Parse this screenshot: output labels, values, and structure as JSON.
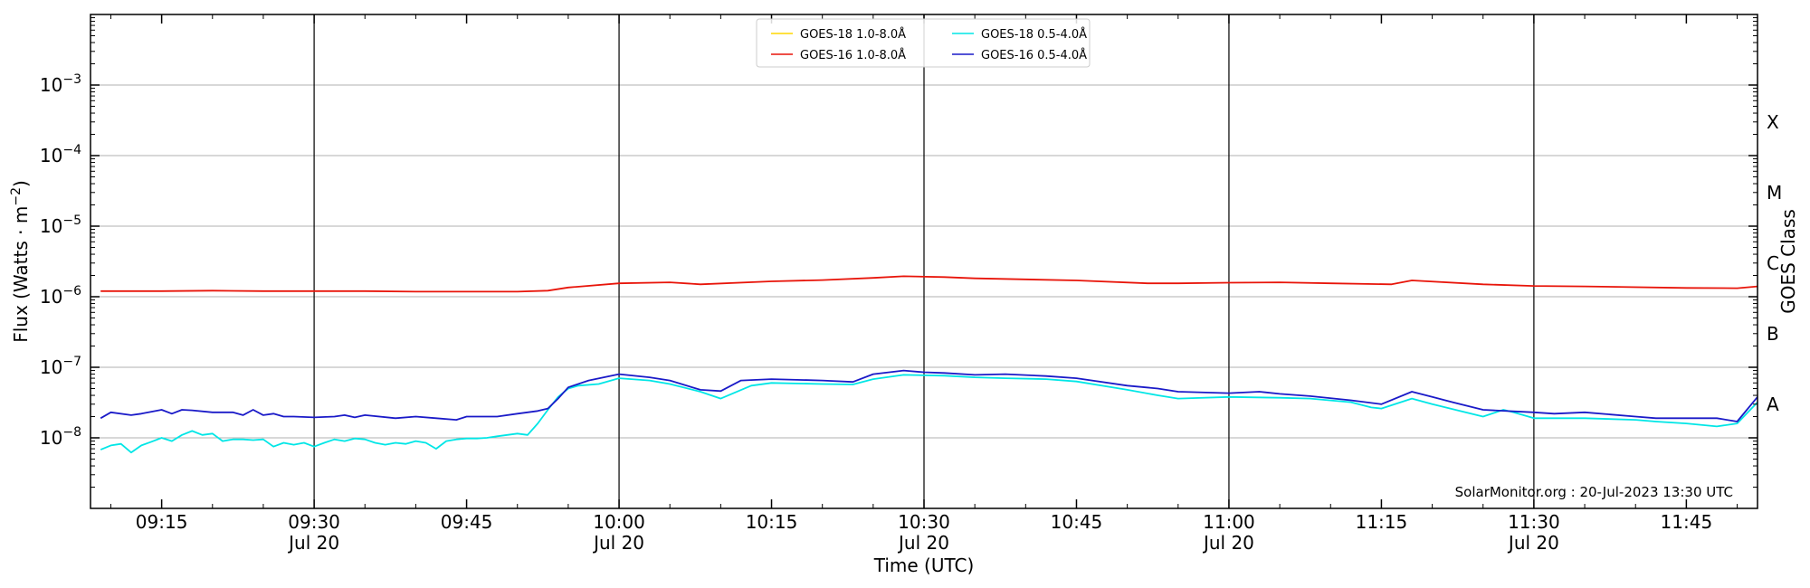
{
  "chart_data": {
    "type": "line",
    "title": "",
    "xlabel": "Time (UTC)",
    "ylabel": "Flux (Watts · m",
    "ylabel_exponent": "−2",
    "ylabel_close": ")",
    "ylabel_right": "GOES Class",
    "yscale": "log",
    "xlim": [
      "09:08",
      "11:52"
    ],
    "ylim": [
      1e-09,
      0.01
    ],
    "y_ticks": [
      {
        "value": 1e-08,
        "base": "10",
        "exp": "−8"
      },
      {
        "value": 1e-07,
        "base": "10",
        "exp": "−7"
      },
      {
        "value": 1e-06,
        "base": "10",
        "exp": "−6"
      },
      {
        "value": 1e-05,
        "base": "10",
        "exp": "−5"
      },
      {
        "value": 0.0001,
        "base": "10",
        "exp": "−4"
      },
      {
        "value": 0.001,
        "base": "10",
        "exp": "−3"
      }
    ],
    "x_ticks": [
      {
        "time": "09:15",
        "label": "09:15",
        "sub": ""
      },
      {
        "time": "09:30",
        "label": "09:30",
        "sub": "Jul 20"
      },
      {
        "time": "09:45",
        "label": "09:45",
        "sub": ""
      },
      {
        "time": "10:00",
        "label": "10:00",
        "sub": "Jul 20"
      },
      {
        "time": "10:15",
        "label": "10:15",
        "sub": ""
      },
      {
        "time": "10:30",
        "label": "10:30",
        "sub": "Jul 20"
      },
      {
        "time": "10:45",
        "label": "10:45",
        "sub": ""
      },
      {
        "time": "11:00",
        "label": "11:00",
        "sub": "Jul 20"
      },
      {
        "time": "11:15",
        "label": "11:15",
        "sub": ""
      },
      {
        "time": "11:30",
        "label": "11:30",
        "sub": "Jul 20"
      },
      {
        "time": "11:45",
        "label": "11:45",
        "sub": ""
      }
    ],
    "vlines": [
      "09:30",
      "10:00",
      "10:30",
      "11:00",
      "11:30"
    ],
    "class_labels": [
      {
        "label": "X",
        "value": 0.0003
      },
      {
        "label": "M",
        "value": 3e-05
      },
      {
        "label": "C",
        "value": 3e-06
      },
      {
        "label": "B",
        "value": 3e-07
      },
      {
        "label": "A",
        "value": 3e-08
      }
    ],
    "grid": "horizontal",
    "legend_position": "top-center",
    "credit": "SolarMonitor.org : 20-Jul-2023 13:30 UTC",
    "series": [
      {
        "name": "GOES-18 1.0-8.0Å",
        "color": "#ffd700",
        "x": [],
        "y": []
      },
      {
        "name": "GOES-16 1.0-8.0Å",
        "color": "#e8150a",
        "x": [
          "09:09",
          "09:15",
          "09:20",
          "09:25",
          "09:30",
          "09:35",
          "09:40",
          "09:45",
          "09:50",
          "09:53",
          "09:55",
          "10:00",
          "10:05",
          "10:08",
          "10:15",
          "10:20",
          "10:25",
          "10:28",
          "10:32",
          "10:35",
          "10:45",
          "10:52",
          "10:55",
          "11:00",
          "11:05",
          "11:10",
          "11:16",
          "11:18",
          "11:25",
          "11:30",
          "11:35",
          "11:45",
          "11:50",
          "11:52"
        ],
        "y": [
          1.2e-06,
          1.2e-06,
          1.22e-06,
          1.2e-06,
          1.2e-06,
          1.2e-06,
          1.18e-06,
          1.18e-06,
          1.18e-06,
          1.22e-06,
          1.35e-06,
          1.55e-06,
          1.6e-06,
          1.5e-06,
          1.65e-06,
          1.72e-06,
          1.85e-06,
          1.95e-06,
          1.9e-06,
          1.82e-06,
          1.7e-06,
          1.55e-06,
          1.55e-06,
          1.58e-06,
          1.6e-06,
          1.55e-06,
          1.5e-06,
          1.7e-06,
          1.5e-06,
          1.42e-06,
          1.4e-06,
          1.33e-06,
          1.32e-06,
          1.4e-06
        ]
      },
      {
        "name": "GOES-18 0.5-4.0Å",
        "color": "#00e6e6",
        "x": [
          "09:09",
          "09:10",
          "09:11",
          "09:12",
          "09:13",
          "09:14",
          "09:15",
          "09:16",
          "09:17",
          "09:18",
          "09:19",
          "09:20",
          "09:21",
          "09:22",
          "09:23",
          "09:24",
          "09:25",
          "09:26",
          "09:27",
          "09:28",
          "09:29",
          "09:30",
          "09:31",
          "09:32",
          "09:33",
          "09:34",
          "09:35",
          "09:36",
          "09:37",
          "09:38",
          "09:39",
          "09:40",
          "09:41",
          "09:42",
          "09:43",
          "09:44",
          "09:45",
          "09:46",
          "09:47",
          "09:48",
          "09:49",
          "09:50",
          "09:51",
          "09:52",
          "09:53",
          "09:54",
          "09:55",
          "09:56",
          "09:58",
          "10:00",
          "10:03",
          "10:05",
          "10:08",
          "10:10",
          "10:13",
          "10:15",
          "10:20",
          "10:23",
          "10:25",
          "10:28",
          "10:32",
          "10:35",
          "10:38",
          "10:42",
          "10:45",
          "10:50",
          "10:53",
          "10:55",
          "11:00",
          "11:05",
          "11:08",
          "11:12",
          "11:14",
          "11:15",
          "11:18",
          "11:20",
          "11:25",
          "11:27",
          "11:28",
          "11:30",
          "11:35",
          "11:40",
          "11:42",
          "11:45",
          "11:48",
          "11:50",
          "11:52"
        ],
        "y": [
          6.8e-09,
          7.8e-09,
          8.2e-09,
          6.2e-09,
          7.8e-09,
          8.8e-09,
          1e-08,
          9e-09,
          1.1e-08,
          1.25e-08,
          1.1e-08,
          1.15e-08,
          9e-09,
          9.5e-09,
          9.5e-09,
          9.3e-09,
          9.5e-09,
          7.5e-09,
          8.5e-09,
          8e-09,
          8.5e-09,
          7.5e-09,
          8.5e-09,
          9.5e-09,
          9e-09,
          9.8e-09,
          9.5e-09,
          8.5e-09,
          8e-09,
          8.5e-09,
          8.2e-09,
          9e-09,
          8.5e-09,
          7e-09,
          9e-09,
          9.5e-09,
          9.8e-09,
          9.8e-09,
          1e-08,
          1.05e-08,
          1.1e-08,
          1.15e-08,
          1.1e-08,
          1.6e-08,
          2.5e-08,
          3.8e-08,
          5e-08,
          5.5e-08,
          5.8e-08,
          7e-08,
          6.5e-08,
          5.8e-08,
          4.5e-08,
          3.6e-08,
          5.5e-08,
          6e-08,
          5.8e-08,
          5.7e-08,
          6.8e-08,
          7.8e-08,
          7.6e-08,
          7.2e-08,
          7e-08,
          6.8e-08,
          6.3e-08,
          4.8e-08,
          4e-08,
          3.6e-08,
          3.8e-08,
          3.7e-08,
          3.6e-08,
          3.2e-08,
          2.7e-08,
          2.6e-08,
          3.6e-08,
          3e-08,
          2e-08,
          2.5e-08,
          2.3e-08,
          1.9e-08,
          1.9e-08,
          1.8e-08,
          1.7e-08,
          1.6e-08,
          1.45e-08,
          1.6e-08,
          3.2e-08
        ]
      },
      {
        "name": "GOES-16 0.5-4.0Å",
        "color": "#1a1ac8",
        "x": [
          "09:09",
          "09:10",
          "09:12",
          "09:13",
          "09:15",
          "09:16",
          "09:17",
          "09:18",
          "09:20",
          "09:22",
          "09:23",
          "09:24",
          "09:25",
          "09:26",
          "09:27",
          "09:28",
          "09:30",
          "09:32",
          "09:33",
          "09:34",
          "09:35",
          "09:38",
          "09:40",
          "09:42",
          "09:44",
          "09:45",
          "09:48",
          "09:50",
          "09:52",
          "09:53",
          "09:54",
          "09:55",
          "09:57",
          "10:00",
          "10:03",
          "10:05",
          "10:08",
          "10:10",
          "10:12",
          "10:15",
          "10:20",
          "10:23",
          "10:25",
          "10:28",
          "10:30",
          "10:32",
          "10:35",
          "10:38",
          "10:42",
          "10:45",
          "10:50",
          "10:53",
          "10:55",
          "11:00",
          "11:03",
          "11:05",
          "11:08",
          "11:12",
          "11:15",
          "11:18",
          "11:20",
          "11:22",
          "11:25",
          "11:30",
          "11:32",
          "11:35",
          "11:40",
          "11:42",
          "11:45",
          "11:48",
          "11:50",
          "11:52"
        ],
        "y": [
          1.9e-08,
          2.3e-08,
          2.1e-08,
          2.2e-08,
          2.5e-08,
          2.2e-08,
          2.5e-08,
          2.45e-08,
          2.3e-08,
          2.3e-08,
          2.1e-08,
          2.5e-08,
          2.1e-08,
          2.2e-08,
          2e-08,
          2e-08,
          1.95e-08,
          2e-08,
          2.1e-08,
          1.95e-08,
          2.1e-08,
          1.9e-08,
          2e-08,
          1.9e-08,
          1.8e-08,
          2e-08,
          2e-08,
          2.2e-08,
          2.4e-08,
          2.6e-08,
          3.6e-08,
          5.2e-08,
          6.5e-08,
          8e-08,
          7.2e-08,
          6.5e-08,
          4.8e-08,
          4.6e-08,
          6.5e-08,
          6.8e-08,
          6.5e-08,
          6.2e-08,
          8e-08,
          9e-08,
          8.5e-08,
          8.3e-08,
          7.8e-08,
          8e-08,
          7.5e-08,
          7e-08,
          5.5e-08,
          5e-08,
          4.5e-08,
          4.3e-08,
          4.5e-08,
          4.2e-08,
          3.9e-08,
          3.4e-08,
          3e-08,
          4.5e-08,
          3.8e-08,
          3.2e-08,
          2.5e-08,
          2.3e-08,
          2.2e-08,
          2.3e-08,
          2e-08,
          1.9e-08,
          1.9e-08,
          1.9e-08,
          1.7e-08,
          3.8e-08
        ]
      }
    ]
  }
}
